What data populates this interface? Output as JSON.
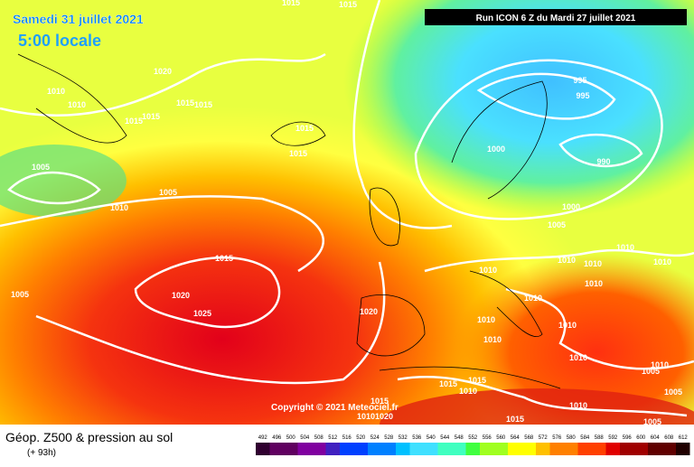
{
  "header": {
    "date": "Samedi 31 juillet 2021",
    "time": "5:00 locale",
    "run": "Run ICON 6 Z du Mardi 27 juillet 2021"
  },
  "copyright": "Copyright © 2021 Meteociel.fr",
  "footer": {
    "title": "Géop. Z500 & pression au sol",
    "lead": "(+ 93h)"
  },
  "scale": {
    "values": [
      492,
      496,
      500,
      504,
      508,
      512,
      516,
      520,
      524,
      528,
      532,
      536,
      540,
      544,
      548,
      552,
      556,
      560,
      564,
      568,
      572,
      576,
      580,
      584,
      588,
      592,
      596,
      600,
      604,
      608,
      612
    ]
  },
  "isobar_labels": [
    "1020",
    "1010",
    "1010",
    "1015",
    "1015",
    "1015",
    "1015",
    "1015",
    "1015",
    "1005",
    "1005",
    "1010",
    "1015",
    "1020",
    "1025",
    "1005",
    "1020",
    "995",
    "995",
    "1000",
    "990",
    "1000",
    "1005",
    "1010",
    "1010",
    "1010",
    "1010",
    "1010",
    "1010",
    "1010",
    "1010",
    "1010",
    "1010",
    "1010",
    "1010",
    "1005",
    "1015",
    "1010",
    "1015",
    "1010",
    "1005",
    "1005",
    "1015",
    "1015",
    "1010",
    "1020",
    "1015",
    "1015"
  ]
}
